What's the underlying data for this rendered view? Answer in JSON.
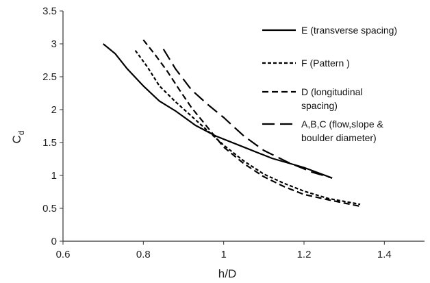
{
  "chart_data": {
    "type": "line",
    "title": "",
    "xlabel": "h/D",
    "ylabel": "C",
    "ylabel_subscript": "d",
    "xlim": [
      0.6,
      1.5
    ],
    "ylim": [
      0,
      3.5
    ],
    "xticks": [
      "0.6",
      "0.8",
      "1",
      "1.2",
      "1.4"
    ],
    "yticks": [
      "0",
      "0.5",
      "1",
      "1.5",
      "2",
      "2.5",
      "3",
      "3.5"
    ],
    "grid": false,
    "legend_position": "top-right",
    "series": [
      {
        "name": "E (transverse spacing)",
        "style": "solid",
        "x": [
          0.7,
          0.73,
          0.76,
          0.8,
          0.84,
          0.88,
          0.93,
          0.98,
          1.05,
          1.12,
          1.2,
          1.27
        ],
        "y": [
          3.0,
          2.85,
          2.62,
          2.36,
          2.13,
          1.98,
          1.76,
          1.6,
          1.43,
          1.26,
          1.12,
          0.96
        ]
      },
      {
        "name": "F (Pattern )",
        "style": "short-dash",
        "x": [
          0.78,
          0.81,
          0.84,
          0.88,
          0.92,
          0.96,
          1.0,
          1.05,
          1.1,
          1.15,
          1.2,
          1.26,
          1.34
        ],
        "y": [
          2.9,
          2.65,
          2.36,
          2.12,
          1.9,
          1.68,
          1.46,
          1.22,
          1.02,
          0.88,
          0.76,
          0.65,
          0.56
        ]
      },
      {
        "name": "D (longitudinal spacing)",
        "style": "medium-dash",
        "x": [
          0.8,
          0.83,
          0.86,
          0.89,
          0.92,
          0.96,
          1.0,
          1.05,
          1.1,
          1.15,
          1.2,
          1.26,
          1.34
        ],
        "y": [
          3.06,
          2.83,
          2.58,
          2.3,
          2.03,
          1.73,
          1.43,
          1.18,
          0.98,
          0.83,
          0.71,
          0.63,
          0.53
        ]
      },
      {
        "name": "A,B,C (flow,slope & boulder diameter)",
        "style": "long-dash",
        "legend_lines": [
          "A,B,C (flow,slope &",
          "boulder diameter)"
        ],
        "x": [
          0.85,
          0.88,
          0.92,
          0.96,
          1.0,
          1.05,
          1.1,
          1.16,
          1.22,
          1.27
        ],
        "y": [
          2.92,
          2.62,
          2.3,
          2.08,
          1.88,
          1.6,
          1.38,
          1.2,
          1.05,
          0.96
        ]
      }
    ],
    "legend_lines_D": [
      "D (longitudinal",
      "spacing)"
    ]
  }
}
